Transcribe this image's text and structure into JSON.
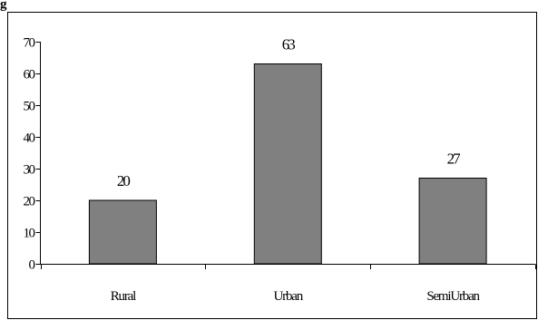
{
  "figure_label": "g",
  "chart_data": {
    "type": "bar",
    "categories": [
      "Rural",
      "Urban",
      "Semi Urban"
    ],
    "category_labels_as_rendered": [
      "Rural",
      "Urban",
      "SemiUrban"
    ],
    "values": [
      20,
      63,
      27
    ],
    "title": "",
    "xlabel": "",
    "ylabel": "",
    "ylim": [
      0,
      70
    ],
    "yticks": [
      0,
      10,
      20,
      30,
      40,
      50,
      60,
      70
    ],
    "grid": false,
    "legend": "none",
    "bar_color": "#808080",
    "bar_outline_color": "#000000",
    "axis_color": "#000000",
    "frame_color": "#000000"
  }
}
